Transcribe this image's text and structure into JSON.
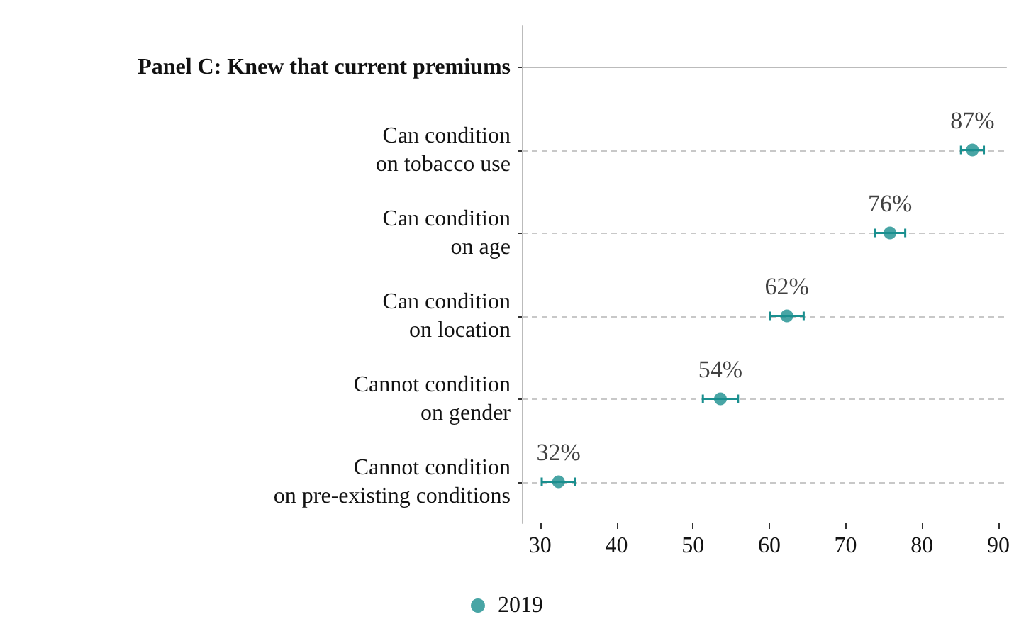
{
  "chart_data": {
    "type": "scatter",
    "orientation": "horizontal",
    "categories": [
      "Panel C: Knew that current premiums",
      "Can condition\non tobacco use",
      "Can condition\non age",
      "Can condition\non location",
      "Cannot condition\non gender",
      "Cannot condition\non pre-existing conditions"
    ],
    "series": [
      {
        "name": "2019",
        "color": "#1a8f8f",
        "values": [
          null,
          86.6,
          75.8,
          62.3,
          53.6,
          32.4
        ],
        "errors": [
          null,
          1.5,
          2,
          2.2,
          2.3,
          2.2
        ],
        "value_labels": [
          null,
          "87%",
          "76%",
          "62%",
          "54%",
          "32%"
        ]
      }
    ],
    "xlim": [
      27.6,
      91.1
    ],
    "xticks": [
      30,
      40,
      50,
      60,
      70,
      80,
      90
    ],
    "ref_lines": [
      {
        "axis": "y",
        "value": "Panel C: Knew that current premiums",
        "color": "#bbbbbb",
        "line_style": "solid"
      }
    ],
    "grid": "y",
    "legend": "bottom",
    "marker": "circle"
  }
}
